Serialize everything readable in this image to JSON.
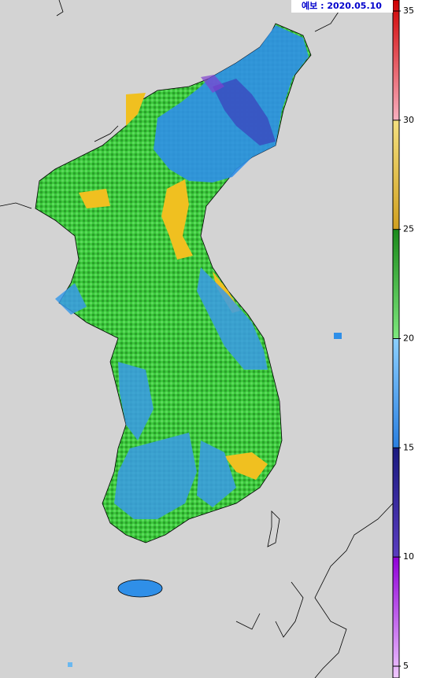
{
  "header": {
    "label": "예보 : 2020.05.10"
  },
  "colorbar": {
    "ticks": [
      5,
      10,
      15,
      20,
      25,
      30,
      35
    ],
    "colors": [
      [
        "#f0c8ff",
        "#9000d8"
      ],
      [
        "#5a3cc0",
        "#1a1a80"
      ],
      [
        "#2a7fe0",
        "#8cd0ff"
      ],
      [
        "#7ee87e",
        "#1a8a1a"
      ],
      [
        "#d0a020",
        "#f4e080"
      ],
      [
        "#f8b0c0",
        "#d00000"
      ]
    ]
  }
}
